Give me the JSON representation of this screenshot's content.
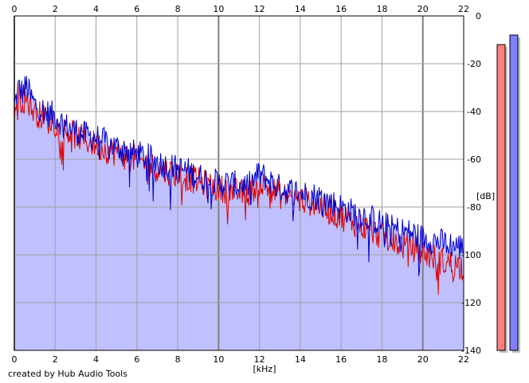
{
  "chart_data": {
    "type": "area",
    "x_unit_label": "[kHz]",
    "y_unit_label": "[dB]",
    "x_ticks": [
      0,
      2,
      4,
      6,
      8,
      10,
      12,
      14,
      16,
      18,
      20,
      22
    ],
    "y_ticks": [
      0,
      -20,
      -40,
      -60,
      -80,
      -100,
      -120,
      -140
    ],
    "xlim": [
      0,
      22
    ],
    "ylim": [
      -140,
      0
    ],
    "grid": true,
    "series": [
      {
        "color": "#0000cc",
        "fill": "#c0c0ff",
        "x": [
          0,
          0.2,
          0.4,
          0.6,
          0.8,
          1,
          1.5,
          2,
          2.5,
          3,
          3.5,
          4,
          4.5,
          5,
          5.5,
          6,
          6.5,
          7,
          7.5,
          8,
          8.5,
          9,
          9.5,
          10,
          10.5,
          11,
          11.5,
          12,
          12.5,
          13,
          13.5,
          14,
          14.5,
          15,
          15.5,
          16,
          16.5,
          17,
          17.5,
          18,
          18.5,
          19,
          19.5,
          20,
          20.5,
          21,
          21.5,
          22
        ],
        "values": [
          -38,
          -30,
          -32,
          -29,
          -34,
          -37,
          -40,
          -42,
          -46,
          -48,
          -50,
          -51,
          -53,
          -55,
          -56,
          -58,
          -59,
          -61,
          -63,
          -64,
          -65,
          -67,
          -69,
          -70,
          -70,
          -71,
          -71,
          -66,
          -69,
          -72,
          -73,
          -74,
          -75,
          -76,
          -78,
          -80,
          -82,
          -83,
          -85,
          -87,
          -89,
          -90,
          -91,
          -93,
          -94,
          -95,
          -96,
          -97
        ]
      },
      {
        "color": "#dd0000",
        "x": [
          0,
          0.2,
          0.4,
          0.6,
          0.8,
          1,
          1.5,
          2,
          2.5,
          3,
          3.5,
          4,
          4.5,
          5,
          5.5,
          6,
          6.5,
          7,
          7.5,
          8,
          8.5,
          9,
          9.5,
          10,
          10.5,
          11,
          11.5,
          12,
          12.5,
          13,
          13.5,
          14,
          14.5,
          15,
          15.5,
          16,
          16.5,
          17,
          17.5,
          18,
          18.5,
          19,
          19.5,
          20,
          20.5,
          21,
          21.5,
          22
        ],
        "values": [
          -40,
          -33,
          -36,
          -34,
          -38,
          -40,
          -43,
          -45,
          -48,
          -50,
          -52,
          -54,
          -56,
          -57,
          -59,
          -60,
          -62,
          -64,
          -65,
          -66,
          -68,
          -69,
          -71,
          -72,
          -73,
          -74,
          -74,
          -70,
          -72,
          -75,
          -76,
          -77,
          -78,
          -80,
          -82,
          -84,
          -86,
          -88,
          -90,
          -92,
          -94,
          -96,
          -97,
          -99,
          -101,
          -103,
          -104,
          -105
        ]
      }
    ]
  },
  "level_meters": [
    {
      "color": "#ff7f7f",
      "level_db": -12
    },
    {
      "color": "#7f7fff",
      "level_db": -8
    }
  ],
  "footer": {
    "credit": "created by Hub Audio Tools"
  }
}
